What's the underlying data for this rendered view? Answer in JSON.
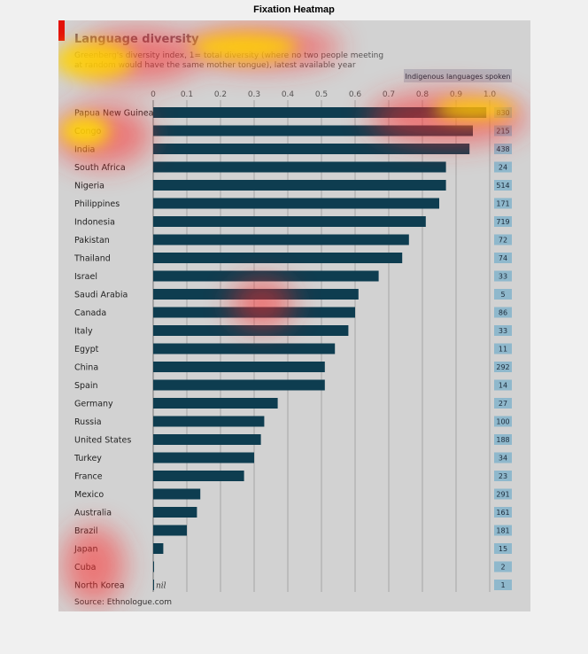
{
  "figure": {
    "title": "Fixation Heatmap"
  },
  "colors": {
    "panel": "#d2d2d2",
    "bar": "#0e3d50",
    "accent": "#e3120b",
    "badge": "#8fb8cc",
    "title": "#6e5a64"
  },
  "chart_data": {
    "type": "bar",
    "orientation": "horizontal",
    "title": "Language diversity",
    "subtitle_lines": [
      "Greenberg's diversity index, 1= total diversity (where no two people meeting",
      "at random would have the same mother tongue), latest available year"
    ],
    "xlim": [
      0,
      1.0
    ],
    "xticks": [
      "0",
      "0.1",
      "0.2",
      "0.3",
      "0.4",
      "0.5",
      "0.6",
      "0.7",
      "0.8",
      "0.9",
      "1.0"
    ],
    "xtick_values": [
      0,
      0.1,
      0.2,
      0.3,
      0.4,
      0.5,
      0.6,
      0.7,
      0.8,
      0.9,
      1.0
    ],
    "grid": true,
    "secondary_column_label": "Indigenous languages spoken",
    "categories": [
      "Papua New Guinea",
      "Congo",
      "India",
      "South Africa",
      "Nigeria",
      "Philippines",
      "Indonesia",
      "Pakistan",
      "Thailand",
      "Israel",
      "Saudi Arabia",
      "Canada",
      "Italy",
      "Egypt",
      "China",
      "Spain",
      "Germany",
      "Russia",
      "United States",
      "Turkey",
      "France",
      "Mexico",
      "Australia",
      "Brazil",
      "Japan",
      "Cuba",
      "North Korea"
    ],
    "values": [
      0.99,
      0.95,
      0.94,
      0.87,
      0.87,
      0.85,
      0.81,
      0.76,
      0.74,
      0.67,
      0.61,
      0.6,
      0.58,
      0.54,
      0.51,
      0.51,
      0.37,
      0.33,
      0.32,
      0.3,
      0.27,
      0.14,
      0.13,
      0.1,
      0.03,
      0.0,
      0.0
    ],
    "languages": [
      830,
      215,
      438,
      24,
      514,
      171,
      719,
      72,
      74,
      33,
      5,
      86,
      33,
      11,
      292,
      14,
      27,
      100,
      188,
      34,
      23,
      291,
      161,
      181,
      15,
      2,
      1
    ],
    "nil_label": "nil",
    "source": "Source: Ethnologue.com"
  }
}
